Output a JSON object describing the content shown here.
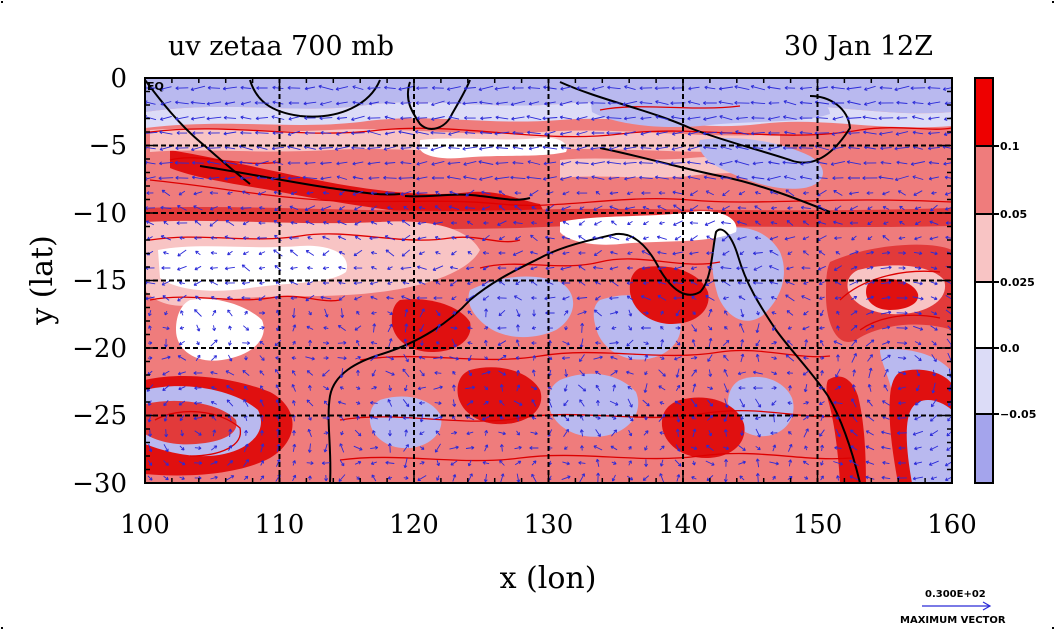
{
  "title_left": "uv zetaa 700 mb",
  "title_right": "30 Jan 12Z",
  "eq_label": "EQ",
  "x_axis_label": "x (lon)",
  "y_axis_label": "y (lat)",
  "x_ticks": [
    "100",
    "110",
    "120",
    "130",
    "140",
    "150",
    "160"
  ],
  "y_ticks": [
    "0",
    "−5",
    "−10",
    "−15",
    "−20",
    "−25",
    "−30"
  ],
  "colorbar": {
    "labels": [
      "0.1",
      "0.05",
      "0.025",
      "0.0",
      "−0.05"
    ],
    "colors": [
      "#ee0000",
      "#ef7c7c",
      "#f8c4c4",
      "#ffffff",
      "#dcdcf7",
      "#a4a4ec"
    ]
  },
  "reference_vector": {
    "value": "0.300E+02",
    "label": "MAXIMUM VECTOR"
  },
  "colors": {
    "coastline": "#000000",
    "grid": "#000000",
    "vectors": "#2a2ad8",
    "contour": "#dd0000"
  }
}
